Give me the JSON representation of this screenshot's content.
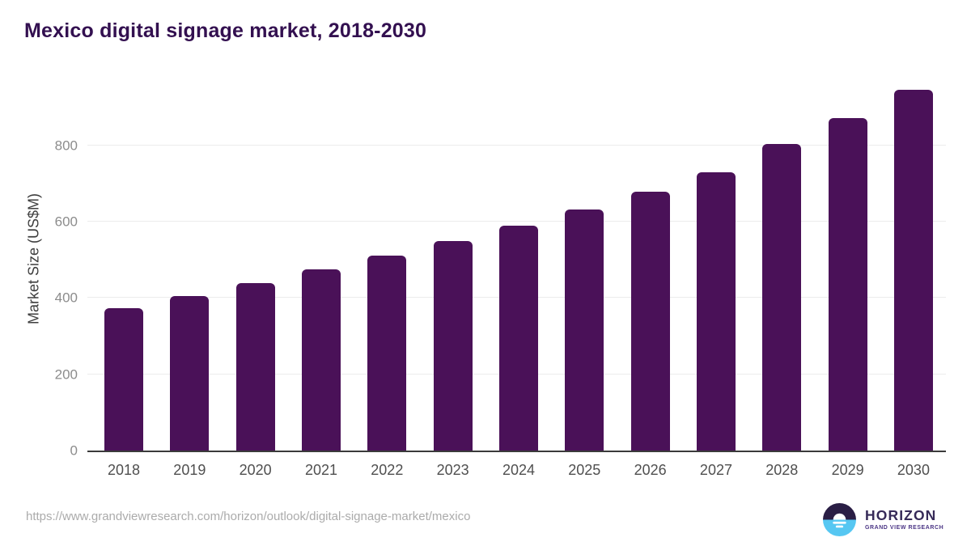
{
  "title": "Mexico digital signage market, 2018-2030",
  "source_url": "https://www.grandviewresearch.com/horizon/outlook/digital-signage-market/mexico",
  "logo": {
    "name": "HORIZON",
    "subtitle": "GRAND VIEW RESEARCH",
    "icon": "horizon-sun-circle-icon"
  },
  "colors": {
    "bar": "#4a1158",
    "title": "#331050",
    "gridline": "#ececec",
    "axis_line": "#3b3b3b",
    "y_tick_label": "#8c8c8c",
    "x_tick_label": "#4f4f4f",
    "source_url": "#ababab",
    "logo_dark": "#2a1e45",
    "logo_blue": "#56c7f2"
  },
  "chart_data": {
    "type": "bar",
    "title": "Mexico digital signage market, 2018-2030",
    "categories": [
      "2018",
      "2019",
      "2020",
      "2021",
      "2022",
      "2023",
      "2024",
      "2025",
      "2026",
      "2027",
      "2028",
      "2029",
      "2030"
    ],
    "values": [
      374,
      406,
      440,
      475,
      511,
      549,
      590,
      632,
      678,
      729,
      803,
      871,
      946
    ],
    "xlabel": "",
    "ylabel": "Market Size (US$M)",
    "ylim": [
      0,
      980
    ],
    "yticks": [
      0,
      200,
      400,
      600,
      800
    ],
    "grid": true,
    "legend": false,
    "bar_color": "#4a1158"
  }
}
